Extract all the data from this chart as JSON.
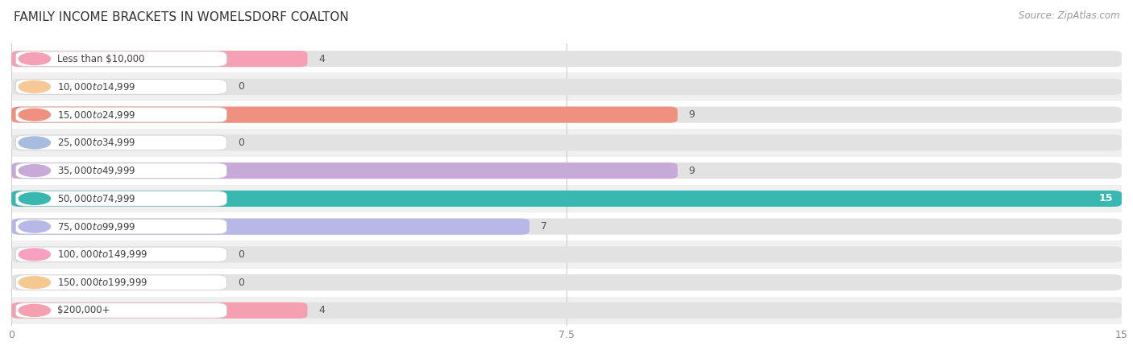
{
  "title": "FAMILY INCOME BRACKETS IN WOMELSDORF COALTON",
  "source": "Source: ZipAtlas.com",
  "categories": [
    "Less than $10,000",
    "$10,000 to $14,999",
    "$15,000 to $24,999",
    "$25,000 to $34,999",
    "$35,000 to $49,999",
    "$50,000 to $74,999",
    "$75,000 to $99,999",
    "$100,000 to $149,999",
    "$150,000 to $199,999",
    "$200,000+"
  ],
  "values": [
    4,
    0,
    9,
    0,
    9,
    15,
    7,
    0,
    0,
    4
  ],
  "bar_colors": [
    "#f5a0b5",
    "#f5c896",
    "#f09080",
    "#a8bce0",
    "#c8aad8",
    "#38b8b0",
    "#b8b8e8",
    "#f8a0c0",
    "#f5c890",
    "#f5a0b0"
  ],
  "row_bg_colors": [
    "#ffffff",
    "#f0f0f0"
  ],
  "xlim": [
    0,
    15
  ],
  "xticks": [
    0,
    7.5,
    15
  ],
  "background_color": "#ffffff",
  "bar_bg_color": "#e0e0e0",
  "title_fontsize": 11,
  "source_fontsize": 8.5,
  "bar_height": 0.58,
  "label_fontsize": 8.5,
  "value_fontsize": 9
}
